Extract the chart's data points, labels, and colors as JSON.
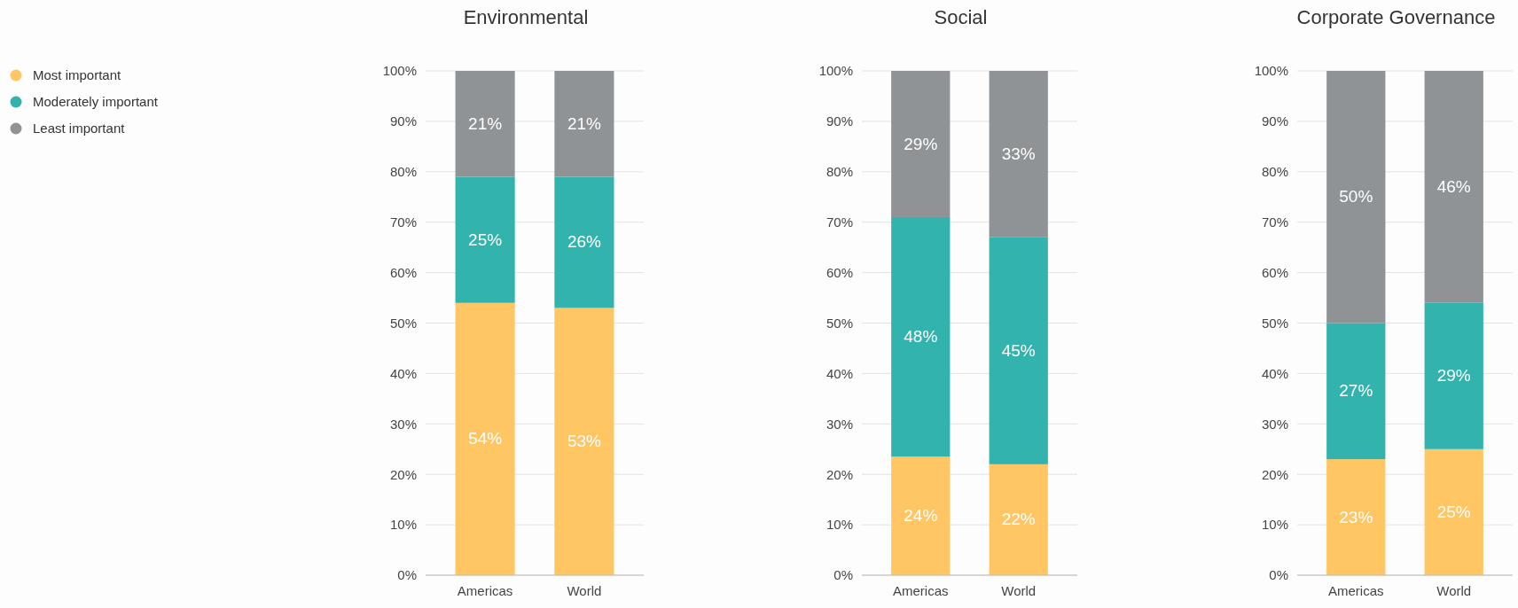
{
  "chart_data": [
    {
      "type": "bar",
      "title": "Environmental",
      "stacked": true,
      "categories": [
        "Americas",
        "World"
      ],
      "ylim": [
        0,
        100
      ],
      "yticks": [
        {
          "value": 0,
          "label": "0%"
        },
        {
          "value": 10,
          "label": "10%"
        },
        {
          "value": 20,
          "label": "20%"
        },
        {
          "value": 30,
          "label": "30%"
        },
        {
          "value": 40,
          "label": "40%"
        },
        {
          "value": 50,
          "label": "50%"
        },
        {
          "value": 60,
          "label": "60%"
        },
        {
          "value": 70,
          "label": "70%"
        },
        {
          "value": 80,
          "label": "80%"
        },
        {
          "value": 90,
          "label": "90%"
        },
        {
          "value": 100,
          "label": "100%"
        }
      ],
      "grid": "y",
      "legend": "left",
      "series": [
        {
          "name": "Most important",
          "color": "#ffc663",
          "values": [
            54,
            53
          ],
          "value_labels": [
            "54%",
            "53%"
          ]
        },
        {
          "name": "Moderately important",
          "color": "#33b3ae",
          "values": [
            25,
            26
          ],
          "value_labels": [
            "25%",
            "26%"
          ]
        },
        {
          "name": "Least important",
          "color": "#8f9396",
          "values": [
            21,
            21
          ],
          "value_labels": [
            "21%",
            "21%"
          ]
        }
      ]
    },
    {
      "type": "bar",
      "title": "Social",
      "stacked": true,
      "categories": [
        "Americas",
        "World"
      ],
      "ylim": [
        0,
        100
      ],
      "yticks": [
        {
          "value": 0,
          "label": "0%"
        },
        {
          "value": 10,
          "label": "10%"
        },
        {
          "value": 20,
          "label": "20%"
        },
        {
          "value": 30,
          "label": "30%"
        },
        {
          "value": 40,
          "label": "40%"
        },
        {
          "value": 50,
          "label": "50%"
        },
        {
          "value": 60,
          "label": "60%"
        },
        {
          "value": 70,
          "label": "70%"
        },
        {
          "value": 80,
          "label": "80%"
        },
        {
          "value": 90,
          "label": "90%"
        },
        {
          "value": 100,
          "label": "100%"
        }
      ],
      "grid": "y",
      "series": [
        {
          "color": "#ffc663",
          "values": [
            23.5,
            22
          ],
          "value_labels": [
            "24%",
            "22%"
          ]
        },
        {
          "color": "#33b3ae",
          "values": [
            47.5,
            45
          ],
          "value_labels": [
            "48%",
            "45%"
          ]
        },
        {
          "color": "#8f9396",
          "values": [
            29,
            33
          ],
          "value_labels": [
            "29%",
            "33%"
          ]
        }
      ]
    },
    {
      "type": "bar",
      "title": "Corporate Governance",
      "stacked": true,
      "categories": [
        "Americas",
        "World"
      ],
      "ylim": [
        0,
        100
      ],
      "yticks": [
        {
          "value": 0,
          "label": "0%"
        },
        {
          "value": 10,
          "label": "10%"
        },
        {
          "value": 20,
          "label": "20%"
        },
        {
          "value": 30,
          "label": "30%"
        },
        {
          "value": 40,
          "label": "40%"
        },
        {
          "value": 50,
          "label": "50%"
        },
        {
          "value": 60,
          "label": "60%"
        },
        {
          "value": 70,
          "label": "70%"
        },
        {
          "value": 80,
          "label": "80%"
        },
        {
          "value": 90,
          "label": "90%"
        },
        {
          "value": 100,
          "label": "100%"
        }
      ],
      "grid": "y",
      "series": [
        {
          "color": "#ffc663",
          "values": [
            23,
            25
          ],
          "value_labels": [
            "23%",
            "25%"
          ]
        },
        {
          "color": "#33b3ae",
          "values": [
            27,
            29
          ],
          "value_labels": [
            "27%",
            "29%"
          ]
        },
        {
          "color": "#8f9396",
          "values": [
            50,
            46
          ],
          "value_labels": [
            "50%",
            "46%"
          ]
        }
      ]
    }
  ]
}
